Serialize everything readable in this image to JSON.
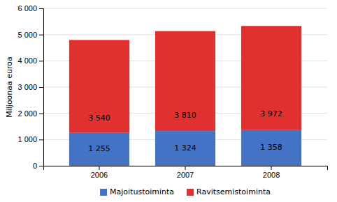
{
  "chart_data": {
    "type": "bar",
    "categories": [
      "2006",
      "2007",
      "2008"
    ],
    "series": [
      {
        "name": "Majoitustoiminta",
        "color": "#4472C4",
        "values": [
          1255,
          1324,
          1358
        ],
        "value_labels": [
          "1 255",
          "1 324",
          "1 358"
        ]
      },
      {
        "name": "Ravitsemistoiminta",
        "color": "#E03030",
        "values": [
          3540,
          3810,
          3972
        ],
        "value_labels": [
          "3 540",
          "3 810",
          "3 972"
        ]
      }
    ],
    "ylabel": "Miljoonaa euroa",
    "ylim": [
      0,
      6000
    ],
    "yticks": [
      0,
      {
        "value": 1000,
        "label": "1 000"
      },
      {
        "value": 2000,
        "label": "2 000"
      },
      {
        "value": 3000,
        "label": "3 000"
      },
      {
        "value": 4000,
        "label": "4 000"
      },
      {
        "value": 5000,
        "label": "5 000"
      },
      {
        "value": 6000,
        "label": "6 000"
      }
    ],
    "grid": true,
    "stacked": true,
    "data_labels": true,
    "legend": "bottom"
  }
}
